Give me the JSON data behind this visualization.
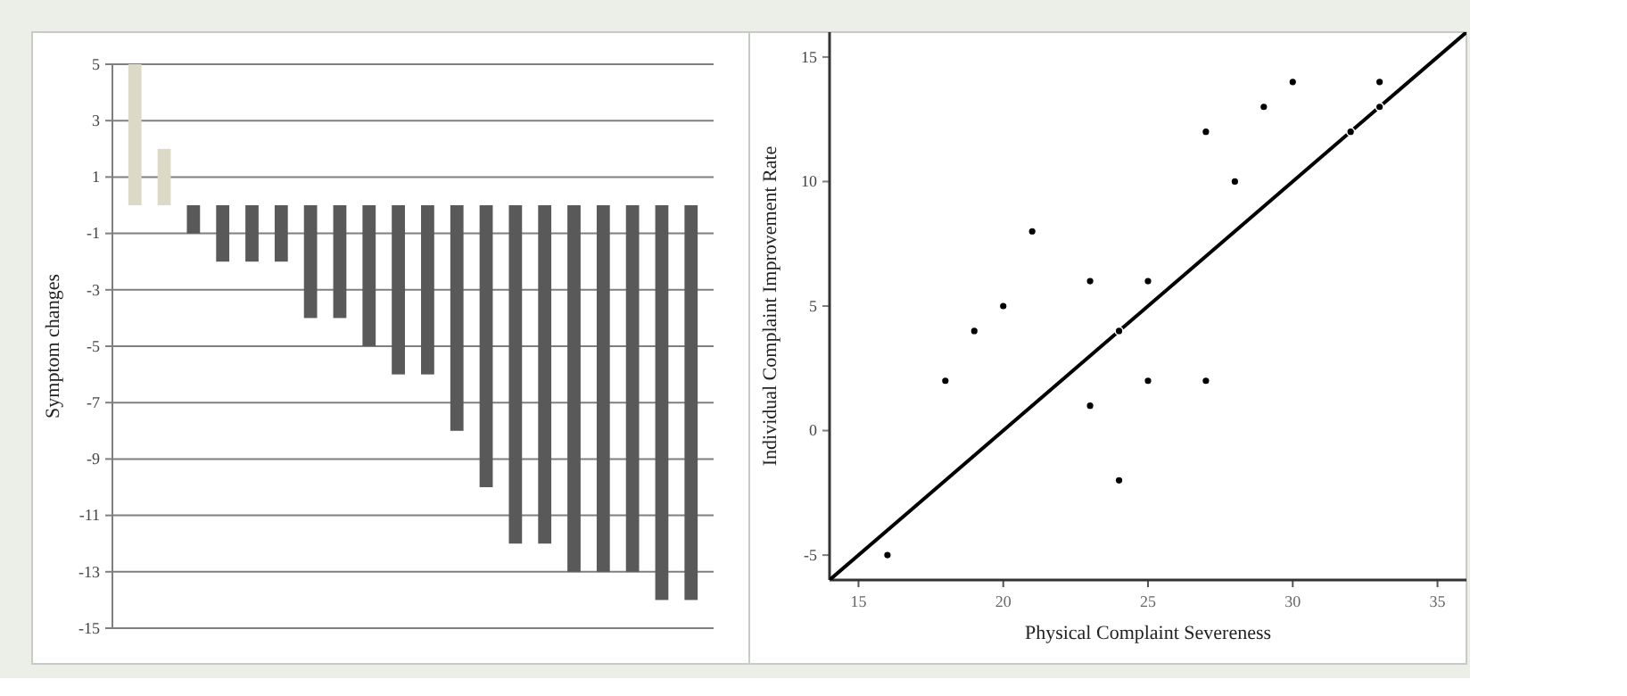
{
  "chart_data": [
    {
      "type": "bar",
      "ylabel": "Symptom changes",
      "categories": [
        null,
        null,
        null,
        null,
        null,
        null,
        null,
        null,
        null,
        null,
        null,
        null,
        null,
        null,
        null,
        null,
        null,
        null,
        null,
        null
      ],
      "values": [
        5,
        2,
        -1,
        -2,
        -2,
        -2,
        -4,
        -4,
        -5,
        -6,
        -6,
        -8,
        -10,
        -12,
        -12,
        -13,
        -13,
        -13,
        -14,
        -14
      ],
      "colors": [
        "#dcdac6",
        "#dcdac6",
        "#595959",
        "#595959",
        "#595959",
        "#595959",
        "#595959",
        "#595959",
        "#595959",
        "#595959",
        "#595959",
        "#595959",
        "#595959",
        "#595959",
        "#595959",
        "#595959",
        "#595959",
        "#595959",
        "#595959",
        "#595959"
      ],
      "ylim": [
        -15,
        5
      ],
      "yticks": [
        -15,
        -13,
        -11,
        -9,
        -7,
        -5,
        -3,
        -1,
        1,
        3,
        5
      ],
      "grid": "y"
    },
    {
      "type": "scatter",
      "xlabel": "Physical Complaint Severeness",
      "ylabel": "Individual Complaint Improvement Rate",
      "xlim": [
        14,
        36
      ],
      "ylim": [
        -6,
        16
      ],
      "xticks": [
        15,
        20,
        25,
        30,
        35
      ],
      "yticks": [
        -5,
        0,
        5,
        10,
        15
      ],
      "grid": false,
      "series": [
        {
          "type": "scatter",
          "marker": "circle",
          "color": "#000000",
          "x": [
            16,
            18,
            19,
            20,
            21,
            23,
            23,
            24,
            24,
            25,
            25,
            27,
            27,
            28,
            29,
            30,
            32,
            33,
            33
          ],
          "values": [
            -5,
            2,
            4,
            5,
            8,
            6,
            1,
            4,
            -2,
            6,
            2,
            12,
            2,
            10,
            13,
            14,
            12,
            14,
            13
          ]
        },
        {
          "type": "line",
          "color": "#000000",
          "x": [
            14,
            36
          ],
          "values": [
            -6,
            16
          ]
        }
      ]
    }
  ]
}
